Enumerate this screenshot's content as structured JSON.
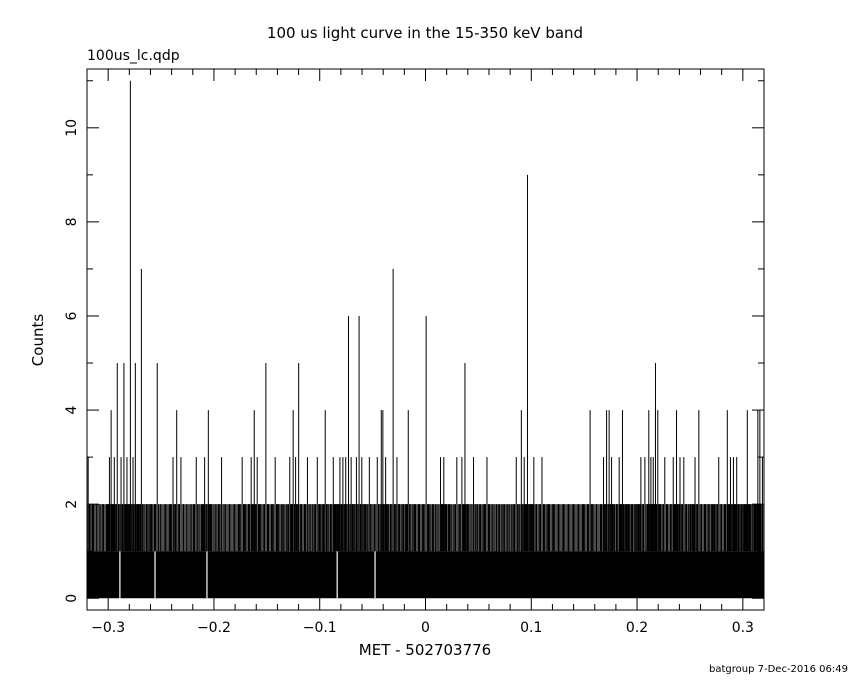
{
  "chart_data": {
    "type": "bar",
    "title": "100 us light curve in the 15-350 keV band",
    "file_label": "100us_lc.qdp",
    "xlabel": "MET - 502703776",
    "ylabel": "Counts",
    "footer": "batgroup  7-Dec-2016 06:49",
    "xlim": [
      -0.32,
      0.32
    ],
    "ylim": [
      -0.25,
      11.25
    ],
    "bin_width": 0.0001,
    "x_ticks": [
      {
        "value": -0.3,
        "label": "−0.3"
      },
      {
        "value": -0.2,
        "label": "−0.2"
      },
      {
        "value": -0.1,
        "label": "−0.1"
      },
      {
        "value": 0,
        "label": "0"
      },
      {
        "value": 0.1,
        "label": "0.1"
      },
      {
        "value": 0.2,
        "label": "0.2"
      },
      {
        "value": 0.3,
        "label": "0.3"
      }
    ],
    "y_ticks": [
      {
        "value": 0,
        "label": "0"
      },
      {
        "value": 2,
        "label": "2"
      },
      {
        "value": 4,
        "label": "4"
      },
      {
        "value": 6,
        "label": "6"
      },
      {
        "value": 8,
        "label": "8"
      },
      {
        "value": 10,
        "label": "10"
      }
    ],
    "base_counts": 1,
    "gaps": [
      -0.2889,
      -0.2557,
      -0.2066,
      -0.0835,
      -0.0477
    ],
    "peaks": [
      {
        "x": -0.3189,
        "y": 3
      },
      {
        "x": -0.3163,
        "y": 2
      },
      {
        "x": -0.3123,
        "y": 2
      },
      {
        "x": -0.3071,
        "y": 2
      },
      {
        "x": -0.3031,
        "y": 2
      },
      {
        "x": -0.2988,
        "y": 3
      },
      {
        "x": -0.2972,
        "y": 4
      },
      {
        "x": -0.2942,
        "y": 3
      },
      {
        "x": -0.2914,
        "y": 5
      },
      {
        "x": -0.2878,
        "y": 3
      },
      {
        "x": -0.2851,
        "y": 5
      },
      {
        "x": -0.2822,
        "y": 3
      },
      {
        "x": -0.279,
        "y": 11
      },
      {
        "x": -0.2765,
        "y": 3
      },
      {
        "x": -0.2743,
        "y": 5
      },
      {
        "x": -0.2715,
        "y": 2
      },
      {
        "x": -0.2686,
        "y": 7
      },
      {
        "x": -0.265,
        "y": 2
      },
      {
        "x": -0.2613,
        "y": 2
      },
      {
        "x": -0.2578,
        "y": 2
      },
      {
        "x": -0.2536,
        "y": 5
      },
      {
        "x": -0.2481,
        "y": 2
      },
      {
        "x": -0.2432,
        "y": 2
      },
      {
        "x": -0.2387,
        "y": 3
      },
      {
        "x": -0.2352,
        "y": 4
      },
      {
        "x": -0.2312,
        "y": 3
      },
      {
        "x": -0.226,
        "y": 2
      },
      {
        "x": -0.2211,
        "y": 2
      },
      {
        "x": -0.2167,
        "y": 3
      },
      {
        "x": -0.2118,
        "y": 2
      },
      {
        "x": -0.2088,
        "y": 3
      },
      {
        "x": -0.2053,
        "y": 4
      },
      {
        "x": -0.2023,
        "y": 2
      },
      {
        "x": -0.1974,
        "y": 2
      },
      {
        "x": -0.1928,
        "y": 3
      },
      {
        "x": -0.1878,
        "y": 2
      },
      {
        "x": -0.1829,
        "y": 2
      },
      {
        "x": -0.178,
        "y": 2
      },
      {
        "x": -0.1733,
        "y": 3
      },
      {
        "x": -0.169,
        "y": 2
      },
      {
        "x": -0.1648,
        "y": 3
      },
      {
        "x": -0.1619,
        "y": 4
      },
      {
        "x": -0.1591,
        "y": 3
      },
      {
        "x": -0.1548,
        "y": 2
      },
      {
        "x": -0.1509,
        "y": 5
      },
      {
        "x": -0.1468,
        "y": 2
      },
      {
        "x": -0.1421,
        "y": 3
      },
      {
        "x": -0.1378,
        "y": 2
      },
      {
        "x": -0.1331,
        "y": 2
      },
      {
        "x": -0.1283,
        "y": 3
      },
      {
        "x": -0.1251,
        "y": 4
      },
      {
        "x": -0.1228,
        "y": 3
      },
      {
        "x": -0.1199,
        "y": 5
      },
      {
        "x": -0.1158,
        "y": 2
      },
      {
        "x": -0.1116,
        "y": 3
      },
      {
        "x": -0.1069,
        "y": 2
      },
      {
        "x": -0.1023,
        "y": 3
      },
      {
        "x": -0.0981,
        "y": 2
      },
      {
        "x": -0.0948,
        "y": 4
      },
      {
        "x": -0.0912,
        "y": 2
      },
      {
        "x": -0.0872,
        "y": 3
      },
      {
        "x": -0.084,
        "y": 2
      },
      {
        "x": -0.0809,
        "y": 3
      },
      {
        "x": -0.0781,
        "y": 3
      },
      {
        "x": -0.0754,
        "y": 3
      },
      {
        "x": -0.0728,
        "y": 6
      },
      {
        "x": -0.0703,
        "y": 3
      },
      {
        "x": -0.0677,
        "y": 2
      },
      {
        "x": -0.0653,
        "y": 3
      },
      {
        "x": -0.0628,
        "y": 6
      },
      {
        "x": -0.0602,
        "y": 3
      },
      {
        "x": -0.0567,
        "y": 2
      },
      {
        "x": -0.0531,
        "y": 3
      },
      {
        "x": -0.0494,
        "y": 2
      },
      {
        "x": -0.0456,
        "y": 3
      },
      {
        "x": -0.0418,
        "y": 4
      },
      {
        "x": -0.0403,
        "y": 4
      },
      {
        "x": -0.0377,
        "y": 3
      },
      {
        "x": -0.0344,
        "y": 2
      },
      {
        "x": -0.0306,
        "y": 7
      },
      {
        "x": -0.027,
        "y": 3
      },
      {
        "x": -0.0232,
        "y": 2
      },
      {
        "x": -0.0195,
        "y": 2
      },
      {
        "x": -0.0163,
        "y": 4
      },
      {
        "x": -0.0124,
        "y": 2
      },
      {
        "x": -0.0082,
        "y": 2
      },
      {
        "x": -0.0041,
        "y": 2
      },
      {
        "x": 0.0006,
        "y": 6
      },
      {
        "x": 0.0049,
        "y": 2
      },
      {
        "x": 0.0094,
        "y": 2
      },
      {
        "x": 0.0142,
        "y": 3
      },
      {
        "x": 0.0173,
        "y": 3
      },
      {
        "x": 0.0203,
        "y": 2
      },
      {
        "x": 0.0247,
        "y": 2
      },
      {
        "x": 0.0296,
        "y": 3
      },
      {
        "x": 0.0344,
        "y": 3
      },
      {
        "x": 0.0373,
        "y": 5
      },
      {
        "x": 0.0406,
        "y": 2
      },
      {
        "x": 0.0454,
        "y": 3
      },
      {
        "x": 0.0492,
        "y": 2
      },
      {
        "x": 0.0537,
        "y": 2
      },
      {
        "x": 0.0581,
        "y": 3
      },
      {
        "x": 0.0622,
        "y": 2
      },
      {
        "x": 0.0671,
        "y": 2
      },
      {
        "x": 0.0717,
        "y": 2
      },
      {
        "x": 0.0764,
        "y": 2
      },
      {
        "x": 0.0812,
        "y": 2
      },
      {
        "x": 0.0858,
        "y": 3
      },
      {
        "x": 0.0906,
        "y": 4
      },
      {
        "x": 0.0933,
        "y": 3
      },
      {
        "x": 0.0964,
        "y": 9
      },
      {
        "x": 0.0992,
        "y": 2
      },
      {
        "x": 0.1024,
        "y": 3
      },
      {
        "x": 0.1062,
        "y": 2
      },
      {
        "x": 0.1101,
        "y": 3
      },
      {
        "x": 0.1142,
        "y": 2
      },
      {
        "x": 0.1187,
        "y": 2
      },
      {
        "x": 0.1233,
        "y": 2
      },
      {
        "x": 0.1281,
        "y": 2
      },
      {
        "x": 0.1328,
        "y": 2
      },
      {
        "x": 0.1376,
        "y": 2
      },
      {
        "x": 0.1423,
        "y": 2
      },
      {
        "x": 0.1472,
        "y": 2
      },
      {
        "x": 0.1517,
        "y": 2
      },
      {
        "x": 0.1556,
        "y": 4
      },
      {
        "x": 0.1592,
        "y": 2
      },
      {
        "x": 0.1641,
        "y": 2
      },
      {
        "x": 0.1683,
        "y": 3
      },
      {
        "x": 0.1712,
        "y": 4
      },
      {
        "x": 0.1736,
        "y": 4
      },
      {
        "x": 0.1759,
        "y": 3
      },
      {
        "x": 0.1792,
        "y": 2
      },
      {
        "x": 0.1831,
        "y": 3
      },
      {
        "x": 0.1862,
        "y": 4
      },
      {
        "x": 0.1896,
        "y": 2
      },
      {
        "x": 0.1928,
        "y": 2
      },
      {
        "x": 0.1969,
        "y": 2
      },
      {
        "x": 0.2003,
        "y": 2
      },
      {
        "x": 0.2036,
        "y": 3
      },
      {
        "x": 0.2074,
        "y": 3
      },
      {
        "x": 0.2111,
        "y": 4
      },
      {
        "x": 0.2131,
        "y": 3
      },
      {
        "x": 0.2153,
        "y": 3
      },
      {
        "x": 0.2174,
        "y": 5
      },
      {
        "x": 0.2196,
        "y": 4
      },
      {
        "x": 0.2224,
        "y": 2
      },
      {
        "x": 0.2262,
        "y": 3
      },
      {
        "x": 0.2303,
        "y": 2
      },
      {
        "x": 0.2342,
        "y": 3
      },
      {
        "x": 0.2373,
        "y": 4
      },
      {
        "x": 0.2406,
        "y": 3
      },
      {
        "x": 0.2442,
        "y": 3
      },
      {
        "x": 0.2481,
        "y": 2
      },
      {
        "x": 0.2516,
        "y": 2
      },
      {
        "x": 0.2548,
        "y": 3
      },
      {
        "x": 0.2584,
        "y": 4
      },
      {
        "x": 0.2622,
        "y": 2
      },
      {
        "x": 0.2664,
        "y": 2
      },
      {
        "x": 0.2703,
        "y": 2
      },
      {
        "x": 0.2736,
        "y": 2
      },
      {
        "x": 0.2772,
        "y": 3
      },
      {
        "x": 0.2811,
        "y": 2
      },
      {
        "x": 0.2853,
        "y": 4
      },
      {
        "x": 0.2883,
        "y": 3
      },
      {
        "x": 0.2911,
        "y": 3
      },
      {
        "x": 0.2942,
        "y": 3
      },
      {
        "x": 0.2976,
        "y": 2
      },
      {
        "x": 0.3011,
        "y": 2
      },
      {
        "x": 0.3042,
        "y": 4
      },
      {
        "x": 0.3074,
        "y": 2
      },
      {
        "x": 0.311,
        "y": 2
      },
      {
        "x": 0.3142,
        "y": 4
      },
      {
        "x": 0.3161,
        "y": 4
      },
      {
        "x": 0.3185,
        "y": 3
      }
    ]
  }
}
